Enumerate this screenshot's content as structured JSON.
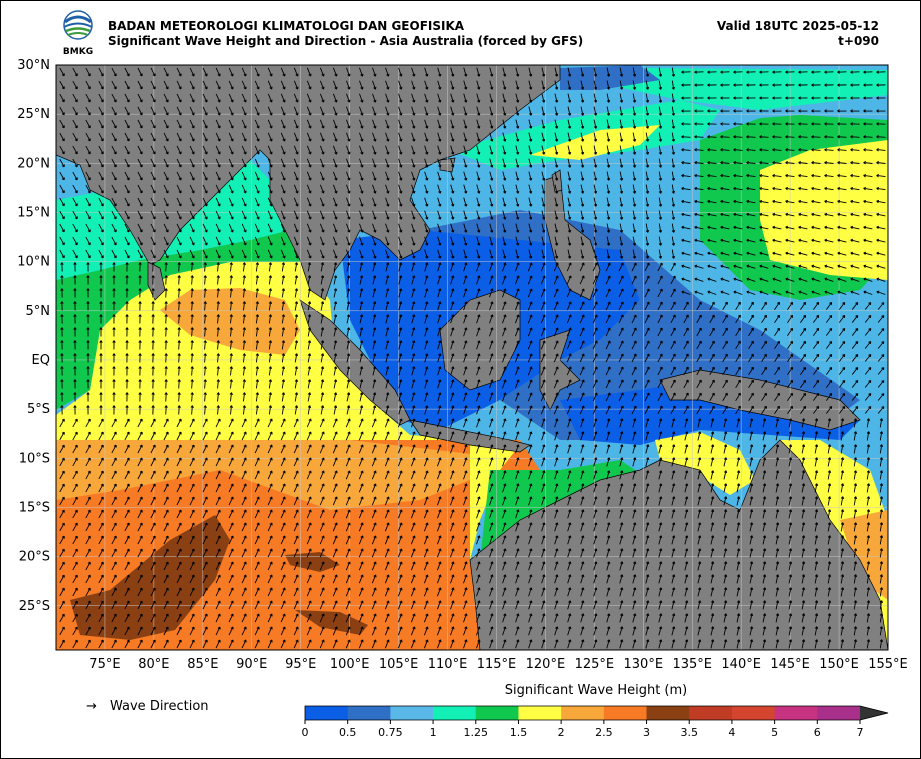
{
  "header": {
    "agency": "BADAN METEOROLOGI KLIMATOLOGI DAN GEOFISIKA",
    "subtitle": "Significant Wave Height and Direction - Asia Australia (forced by GFS)",
    "valid": "Valid 18UTC 2025-05-12",
    "step": "t+090",
    "logo_text": "BMKG"
  },
  "map": {
    "lat_labels": [
      "30°N",
      "25°N",
      "20°N",
      "15°N",
      "10°N",
      "5°N",
      "EQ",
      "5°S",
      "10°S",
      "15°S",
      "20°S",
      "25°S"
    ],
    "lon_labels": [
      "75°E",
      "80°E",
      "85°E",
      "90°E",
      "95°E",
      "100°E",
      "105°E",
      "110°E",
      "115°E",
      "120°E",
      "125°E",
      "130°E",
      "135°E",
      "140°E",
      "145°E",
      "150°E",
      "155°E"
    ],
    "lat_range": [
      -29.5,
      30
    ],
    "lon_range": [
      70,
      155
    ],
    "grid": true,
    "land_color": "#808080",
    "ocean_default_color": "#4db6e6"
  },
  "legend": {
    "arrow_symbol": "→",
    "arrow_label": "Wave Direction"
  },
  "colorbar": {
    "title": "Significant Wave Height (m)",
    "ticks": [
      "0",
      "0.5",
      "0.75",
      "1",
      "1.25",
      "1.5",
      "2",
      "2.5",
      "3",
      "3.5",
      "4",
      "5",
      "6",
      "7"
    ],
    "colors": [
      "#0b5ee6",
      "#2f6fc6",
      "#5ab8e8",
      "#12f0b6",
      "#10c84e",
      "#ffff44",
      "#f8a73a",
      "#f77a24",
      "#8a4012",
      "#c03c24",
      "#d3452e",
      "#c73380",
      "#a8308a"
    ],
    "extend": "max"
  }
}
